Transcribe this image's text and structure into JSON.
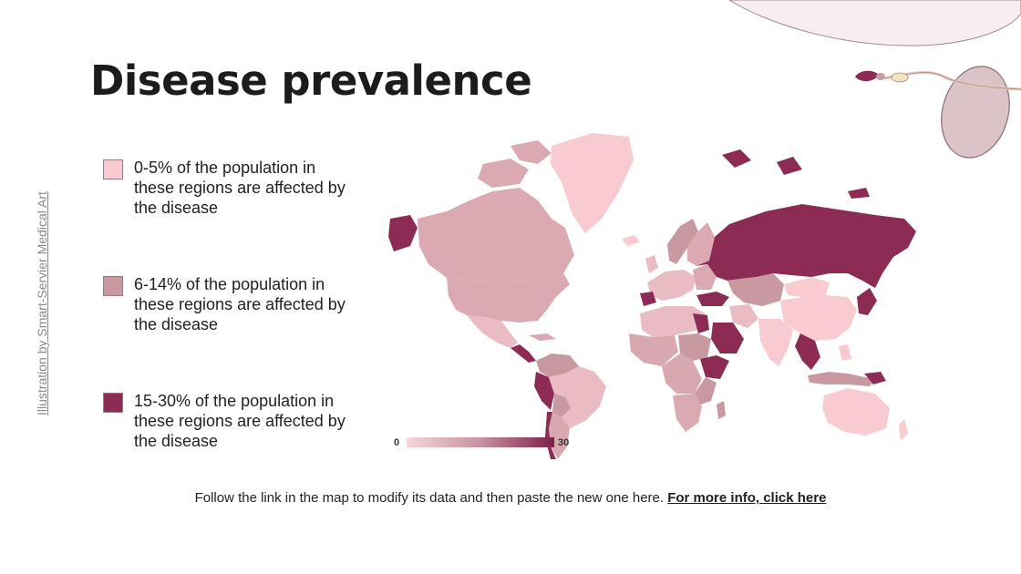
{
  "slide": {
    "title": "Disease prevalence",
    "credit": "Illustration by Smart-Servier Medical Art"
  },
  "legend": [
    {
      "text": "0-5% of the population in these regions are affected by the disease",
      "color": "#f7cbcf"
    },
    {
      "text": "6-14% of the population in these regions are affected by the disease",
      "color": "#c999a1"
    },
    {
      "text": "15-30% of the population in these regions are affected by the disease",
      "color": "#8c2c55"
    }
  ],
  "map": {
    "scale_min": "0",
    "scale_max": "30",
    "colors": {
      "low": "#f7cbcf",
      "mid": "#d8a8b0",
      "high": "#8c2c55"
    }
  },
  "footer": {
    "text": "Follow the link in the map to modify its data and then paste the new one here. ",
    "link": "For more info, click here"
  }
}
